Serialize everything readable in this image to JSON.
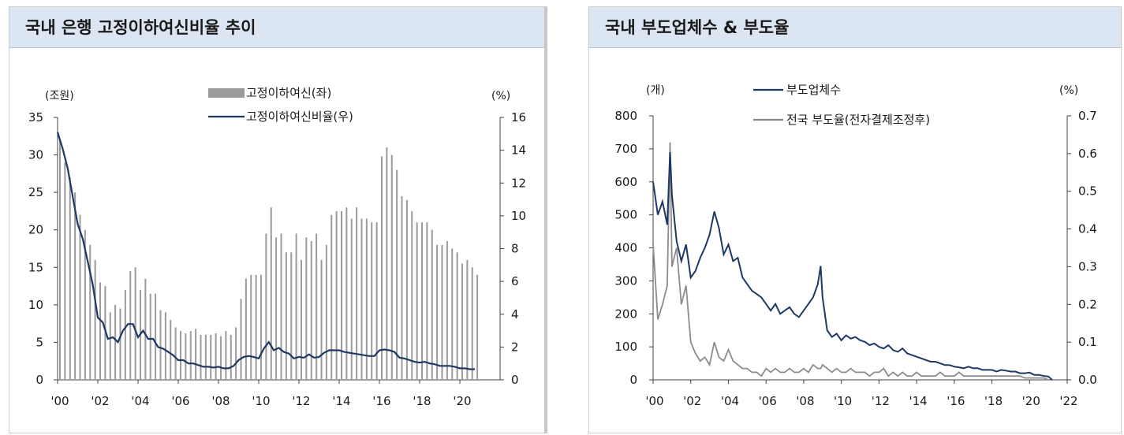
{
  "colors": {
    "bar": "#9b9b9b",
    "line_navy": "#1f3864",
    "line_gray": "#8c8c8c",
    "header_bg": "#dce6f2"
  },
  "chart_data": [
    {
      "type": "bar+line",
      "title": "국내 은행 고정이하여신비율 추이",
      "unit_left": "(조원)",
      "unit_right": "(%)",
      "left_ticks": [
        "0",
        "5",
        "10",
        "15",
        "20",
        "25",
        "30",
        "35"
      ],
      "left_ylim": [
        0,
        35
      ],
      "right_ticks": [
        "0",
        "2",
        "4",
        "6",
        "8",
        "10",
        "12",
        "14",
        "16"
      ],
      "right_ylim": [
        0,
        16
      ],
      "xlim": [
        2000,
        2022
      ],
      "x_ticks": [
        {
          "label": "'00",
          "value": 2000
        },
        {
          "label": "'02",
          "value": 2002
        },
        {
          "label": "'04",
          "value": 2004
        },
        {
          "label": "'06",
          "value": 2006
        },
        {
          "label": "'08",
          "value": 2008
        },
        {
          "label": "'10",
          "value": 2010
        },
        {
          "label": "'12",
          "value": 2012
        },
        {
          "label": "'14",
          "value": 2014
        },
        {
          "label": "'16",
          "value": 2016
        },
        {
          "label": "'18",
          "value": 2018
        },
        {
          "label": "'20",
          "value": 2020
        }
      ],
      "legend": [
        {
          "label": "고정이하여신(좌)",
          "kind": "bar"
        },
        {
          "label": "고정이하여신비율(우)",
          "kind": "line"
        }
      ],
      "bar_series": {
        "name": "고정이하여신(좌)",
        "x": [
          2000.0,
          2000.25,
          2000.5,
          2000.75,
          2001.0,
          2001.25,
          2001.5,
          2001.75,
          2002.0,
          2002.25,
          2002.5,
          2002.75,
          2003.0,
          2003.25,
          2003.5,
          2003.75,
          2004.0,
          2004.25,
          2004.5,
          2004.75,
          2005.0,
          2005.25,
          2005.5,
          2005.75,
          2006.0,
          2006.25,
          2006.5,
          2006.75,
          2007.0,
          2007.25,
          2007.5,
          2007.75,
          2008.0,
          2008.25,
          2008.5,
          2008.75,
          2009.0,
          2009.25,
          2009.5,
          2009.75,
          2010.0,
          2010.25,
          2010.5,
          2010.75,
          2011.0,
          2011.25,
          2011.5,
          2011.75,
          2012.0,
          2012.25,
          2012.5,
          2012.75,
          2013.0,
          2013.25,
          2013.5,
          2013.75,
          2014.0,
          2014.25,
          2014.5,
          2014.75,
          2015.0,
          2015.25,
          2015.5,
          2015.75,
          2016.0,
          2016.25,
          2016.5,
          2016.75,
          2017.0,
          2017.25,
          2017.5,
          2017.75,
          2018.0,
          2018.25,
          2018.5,
          2018.75,
          2019.0,
          2019.25,
          2019.5,
          2019.75,
          2020.0,
          2020.25,
          2020.5,
          2020.75
        ],
        "values": [
          32,
          29,
          27,
          25,
          22,
          20,
          18,
          16,
          13,
          12.5,
          9,
          10,
          9.5,
          12,
          14.5,
          15,
          12,
          13.5,
          11.5,
          11.5,
          9.3,
          9,
          8,
          7,
          6.5,
          6.2,
          6.5,
          6.8,
          6,
          6,
          6,
          6.2,
          5.8,
          6.5,
          6,
          7,
          10.8,
          13.5,
          14,
          14,
          14,
          19.5,
          23,
          19,
          19.5,
          17,
          17,
          19.5,
          16,
          19,
          18.5,
          19.5,
          16,
          18,
          22,
          22.5,
          22.5,
          23,
          21.5,
          23,
          21.5,
          21.5,
          21,
          21,
          29.8,
          31,
          30,
          28,
          24.5,
          24,
          22.5,
          21,
          21,
          21,
          20,
          18,
          18,
          18.5,
          17.5,
          17,
          15.5,
          16,
          15,
          14
        ]
      },
      "line_series": {
        "name": "고정이하여신비율(우)",
        "x": [
          2000.0,
          2000.25,
          2000.5,
          2000.75,
          2001.0,
          2001.25,
          2001.5,
          2001.75,
          2002.0,
          2002.25,
          2002.5,
          2002.75,
          2003.0,
          2003.25,
          2003.5,
          2003.75,
          2004.0,
          2004.25,
          2004.5,
          2004.75,
          2005.0,
          2005.25,
          2005.5,
          2005.75,
          2006.0,
          2006.25,
          2006.5,
          2006.75,
          2007.0,
          2007.25,
          2007.5,
          2007.75,
          2008.0,
          2008.25,
          2008.5,
          2008.75,
          2009.0,
          2009.25,
          2009.5,
          2009.75,
          2010.0,
          2010.25,
          2010.5,
          2010.75,
          2011.0,
          2011.25,
          2011.5,
          2011.75,
          2012.0,
          2012.25,
          2012.5,
          2012.75,
          2013.0,
          2013.25,
          2013.5,
          2013.75,
          2014.0,
          2014.25,
          2014.5,
          2014.75,
          2015.0,
          2015.25,
          2015.5,
          2015.75,
          2016.0,
          2016.25,
          2016.5,
          2016.75,
          2017.0,
          2017.25,
          2017.5,
          2017.75,
          2018.0,
          2018.25,
          2018.5,
          2018.75,
          2019.0,
          2019.25,
          2019.5,
          2019.75,
          2020.0,
          2020.25,
          2020.5,
          2020.75
        ],
        "values": [
          15.1,
          14.1,
          12.9,
          11.2,
          9.5,
          8.6,
          7.2,
          5.8,
          3.8,
          3.5,
          2.5,
          2.6,
          2.3,
          3.0,
          3.4,
          3.4,
          2.6,
          3.0,
          2.5,
          2.5,
          2.0,
          1.9,
          1.7,
          1.5,
          1.2,
          1.2,
          1.0,
          1.0,
          0.9,
          0.8,
          0.8,
          0.75,
          0.8,
          0.7,
          0.7,
          0.85,
          1.2,
          1.4,
          1.45,
          1.4,
          1.3,
          1.9,
          2.3,
          1.8,
          1.95,
          1.7,
          1.6,
          1.3,
          1.4,
          1.35,
          1.55,
          1.35,
          1.4,
          1.65,
          1.8,
          1.8,
          1.8,
          1.7,
          1.65,
          1.6,
          1.55,
          1.5,
          1.45,
          1.45,
          1.8,
          1.85,
          1.8,
          1.7,
          1.35,
          1.3,
          1.2,
          1.1,
          1.05,
          1.1,
          1.0,
          0.95,
          0.85,
          0.85,
          0.85,
          0.8,
          0.7,
          0.7,
          0.65,
          0.65
        ]
      }
    },
    {
      "type": "line",
      "title": "국내 부도업체수 & 부도율",
      "unit_left": "(개)",
      "unit_right": "(%)",
      "left_ticks": [
        "0",
        "100",
        "200",
        "300",
        "400",
        "500",
        "600",
        "700",
        "800"
      ],
      "left_ylim": [
        0,
        800
      ],
      "right_ticks": [
        "0.0",
        "0.1",
        "0.2",
        "0.3",
        "0.4",
        "0.5",
        "0.6",
        "0.7"
      ],
      "right_ylim": [
        0,
        0.7
      ],
      "xlim": [
        2000,
        2022
      ],
      "x_ticks": [
        {
          "label": "'00",
          "value": 2000
        },
        {
          "label": "'02",
          "value": 2002
        },
        {
          "label": "'04",
          "value": 2004
        },
        {
          "label": "'06",
          "value": 2006
        },
        {
          "label": "'08",
          "value": 2008
        },
        {
          "label": "'10",
          "value": 2010
        },
        {
          "label": "'12",
          "value": 2012
        },
        {
          "label": "'14",
          "value": 2014
        },
        {
          "label": "'16",
          "value": 2016
        },
        {
          "label": "'18",
          "value": 2018
        },
        {
          "label": "'20",
          "value": 2020
        },
        {
          "label": "'22",
          "value": 2022
        }
      ],
      "legend": [
        {
          "label": "부도업체수",
          "kind": "line",
          "color": "#1f3864"
        },
        {
          "label": "전국 부도율(전자결제조정후)",
          "kind": "line",
          "color": "#8c8c8c"
        }
      ],
      "series": [
        {
          "name": "부도업체수",
          "axis": "left",
          "x": [
            2000.0,
            2000.25,
            2000.5,
            2000.75,
            2000.9,
            2001.0,
            2001.25,
            2001.5,
            2001.75,
            2002.0,
            2002.25,
            2002.5,
            2002.75,
            2003.0,
            2003.25,
            2003.5,
            2003.75,
            2004.0,
            2004.25,
            2004.5,
            2004.75,
            2005.0,
            2005.25,
            2005.5,
            2005.75,
            2006.0,
            2006.25,
            2006.5,
            2006.75,
            2007.0,
            2007.25,
            2007.5,
            2007.75,
            2008.0,
            2008.25,
            2008.5,
            2008.75,
            2008.9,
            2009.0,
            2009.25,
            2009.5,
            2009.75,
            2010.0,
            2010.25,
            2010.5,
            2010.75,
            2011.0,
            2011.25,
            2011.5,
            2011.75,
            2012.0,
            2012.25,
            2012.5,
            2012.75,
            2013.0,
            2013.25,
            2013.5,
            2013.75,
            2014.0,
            2014.25,
            2014.5,
            2014.75,
            2015.0,
            2015.25,
            2015.5,
            2015.75,
            2016.0,
            2016.25,
            2016.5,
            2016.75,
            2017.0,
            2017.25,
            2017.5,
            2017.75,
            2018.0,
            2018.25,
            2018.5,
            2018.75,
            2019.0,
            2019.25,
            2019.5,
            2019.75,
            2020.0,
            2020.25,
            2020.5,
            2020.75,
            2021.0,
            2021.2
          ],
          "values": [
            600,
            500,
            540,
            470,
            690,
            560,
            420,
            360,
            410,
            310,
            330,
            370,
            400,
            440,
            510,
            460,
            380,
            410,
            360,
            370,
            310,
            290,
            270,
            260,
            250,
            230,
            210,
            230,
            200,
            210,
            220,
            200,
            190,
            210,
            230,
            250,
            290,
            345,
            250,
            150,
            130,
            140,
            120,
            135,
            125,
            130,
            120,
            115,
            105,
            110,
            100,
            95,
            105,
            90,
            85,
            95,
            80,
            75,
            70,
            65,
            60,
            55,
            55,
            50,
            45,
            45,
            40,
            38,
            35,
            40,
            35,
            35,
            30,
            30,
            30,
            25,
            30,
            28,
            25,
            25,
            20,
            20,
            22,
            15,
            15,
            12,
            10,
            0
          ]
        },
        {
          "name": "전국 부도율(전자결제조정후)",
          "axis": "right",
          "x": [
            2000.0,
            2000.25,
            2000.5,
            2000.75,
            2000.9,
            2001.0,
            2001.25,
            2001.5,
            2001.75,
            2002.0,
            2002.25,
            2002.5,
            2002.75,
            2003.0,
            2003.25,
            2003.5,
            2003.75,
            2004.0,
            2004.25,
            2004.5,
            2004.75,
            2005.0,
            2005.25,
            2005.5,
            2005.75,
            2006.0,
            2006.25,
            2006.5,
            2006.75,
            2007.0,
            2007.25,
            2007.5,
            2007.75,
            2008.0,
            2008.25,
            2008.5,
            2008.75,
            2008.9,
            2009.0,
            2009.25,
            2009.5,
            2009.75,
            2010.0,
            2010.25,
            2010.5,
            2010.75,
            2011.0,
            2011.25,
            2011.5,
            2011.75,
            2012.0,
            2012.25,
            2012.5,
            2012.75,
            2013.0,
            2013.25,
            2013.5,
            2013.75,
            2014.0,
            2014.25,
            2014.5,
            2014.75,
            2015.0,
            2015.25,
            2015.5,
            2015.75,
            2016.0,
            2016.25,
            2016.5,
            2016.75,
            2017.0,
            2017.25,
            2017.5,
            2017.75,
            2018.0,
            2018.25,
            2018.5,
            2018.75,
            2019.0,
            2019.25,
            2019.5,
            2019.75,
            2020.0,
            2020.25,
            2020.5,
            2020.75,
            2021.0,
            2021.2
          ],
          "values": [
            0.36,
            0.16,
            0.2,
            0.25,
            0.63,
            0.3,
            0.35,
            0.2,
            0.25,
            0.1,
            0.07,
            0.05,
            0.06,
            0.04,
            0.1,
            0.06,
            0.05,
            0.08,
            0.05,
            0.04,
            0.03,
            0.03,
            0.02,
            0.02,
            0.01,
            0.03,
            0.02,
            0.03,
            0.02,
            0.02,
            0.03,
            0.02,
            0.02,
            0.03,
            0.02,
            0.04,
            0.03,
            0.03,
            0.04,
            0.03,
            0.02,
            0.03,
            0.02,
            0.02,
            0.03,
            0.02,
            0.02,
            0.02,
            0.01,
            0.02,
            0.02,
            0.03,
            0.01,
            0.02,
            0.01,
            0.02,
            0.01,
            0.01,
            0.02,
            0.01,
            0.01,
            0.01,
            0.01,
            0.02,
            0.01,
            0.01,
            0.01,
            0.02,
            0.01,
            0.01,
            0.01,
            0.01,
            0.01,
            0.01,
            0.01,
            0.01,
            0.01,
            0.01,
            0.01,
            0.01,
            0.01,
            0.005,
            0.005,
            0.005,
            0.005,
            0.005,
            0.0,
            0.0
          ]
        }
      ]
    }
  ]
}
